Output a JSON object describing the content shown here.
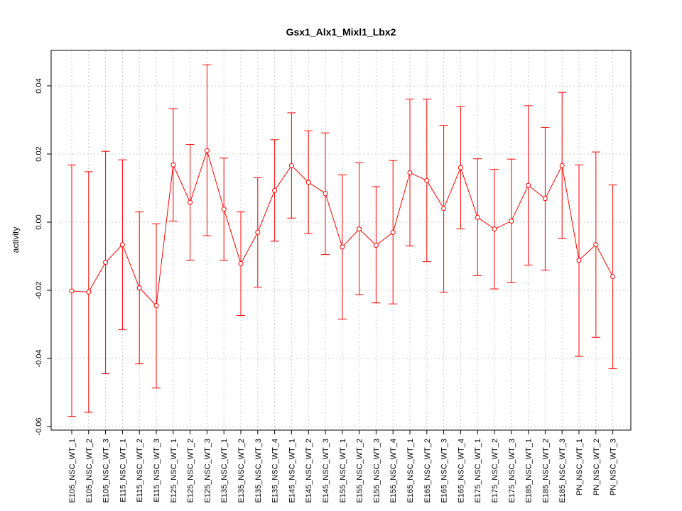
{
  "chart_data": {
    "type": "line",
    "title": "Gsx1_Alx1_Mixl1_Lbx2",
    "xlabel": "",
    "ylabel": "activity",
    "ylim": [
      -0.06,
      0.05
    ],
    "yticks": [
      "-0.06",
      "-0.04",
      "-0.02",
      "0.00",
      "0.02",
      "0.04"
    ],
    "grid": true,
    "legend": "none",
    "colors": {
      "series": "#ff0000",
      "grid": "#cccccc",
      "axis": "#000000"
    },
    "categories": [
      "E105_NSC_WT_1",
      "E105_NSC_WT_2",
      "E105_NSC_WT_3",
      "E115_NSC_WT_1",
      "E115_NSC_WT_2",
      "E115_NSC_WT_3",
      "E125_NSC_WT_1",
      "E125_NSC_WT_2",
      "E125_NSC_WT_3",
      "E135_NSC_WT_1",
      "E135_NSC_WT_2",
      "E135_NSC_WT_3",
      "E135_NSC_WT_4",
      "E145_NSC_WT_1",
      "E145_NSC_WT_2",
      "E145_NSC_WT_3",
      "E155_NSC_WT_1",
      "E155_NSC_WT_2",
      "E155_NSC_WT_3",
      "E155_NSC_WT_4",
      "E165_NSC_WT_1",
      "E165_NSC_WT_2",
      "E165_NSC_WT_3",
      "E165_NSC_WT_4",
      "E175_NSC_WT_1",
      "E175_NSC_WT_2",
      "E175_NSC_WT_3",
      "E185_NSC_WT_1",
      "E185_NSC_WT_2",
      "E185_NSC_WT_3",
      "PN_NSC_WT_1",
      "PN_NSC_WT_2",
      "PN_NSC_WT_3"
    ],
    "values": [
      -0.0202,
      -0.0205,
      -0.0118,
      -0.0066,
      -0.0193,
      -0.0245,
      0.0168,
      0.0058,
      0.021,
      0.0038,
      -0.0122,
      -0.003,
      0.0093,
      0.0166,
      0.0117,
      0.0084,
      -0.0073,
      -0.002,
      -0.0068,
      -0.003,
      0.0145,
      0.0122,
      0.004,
      0.016,
      0.0014,
      -0.002,
      0.0003,
      0.0108,
      0.0069,
      0.0166,
      -0.0112,
      -0.0066,
      -0.016
    ],
    "upper": [
      0.0168,
      0.0148,
      0.0208,
      0.0183,
      0.003,
      -0.0005,
      0.0333,
      0.0228,
      0.0462,
      0.0188,
      0.003,
      0.0131,
      0.0242,
      0.0321,
      0.0268,
      0.0262,
      0.0139,
      0.0174,
      0.0104,
      0.0181,
      0.0361,
      0.0361,
      0.0284,
      0.0339,
      0.0186,
      0.0155,
      0.0185,
      0.0342,
      0.0278,
      0.0381,
      0.0168,
      0.0206,
      0.0109
    ],
    "lower": [
      -0.057,
      -0.0558,
      -0.0445,
      -0.0316,
      -0.0416,
      -0.0487,
      0.0003,
      -0.0112,
      -0.004,
      -0.0112,
      -0.0274,
      -0.0191,
      -0.0056,
      0.0012,
      -0.0033,
      -0.0095,
      -0.0285,
      -0.0213,
      -0.0237,
      -0.024,
      -0.007,
      -0.0116,
      -0.0206,
      -0.002,
      -0.0157,
      -0.0196,
      -0.0178,
      -0.0126,
      -0.0141,
      -0.0048,
      -0.0394,
      -0.0338,
      -0.043
    ]
  }
}
